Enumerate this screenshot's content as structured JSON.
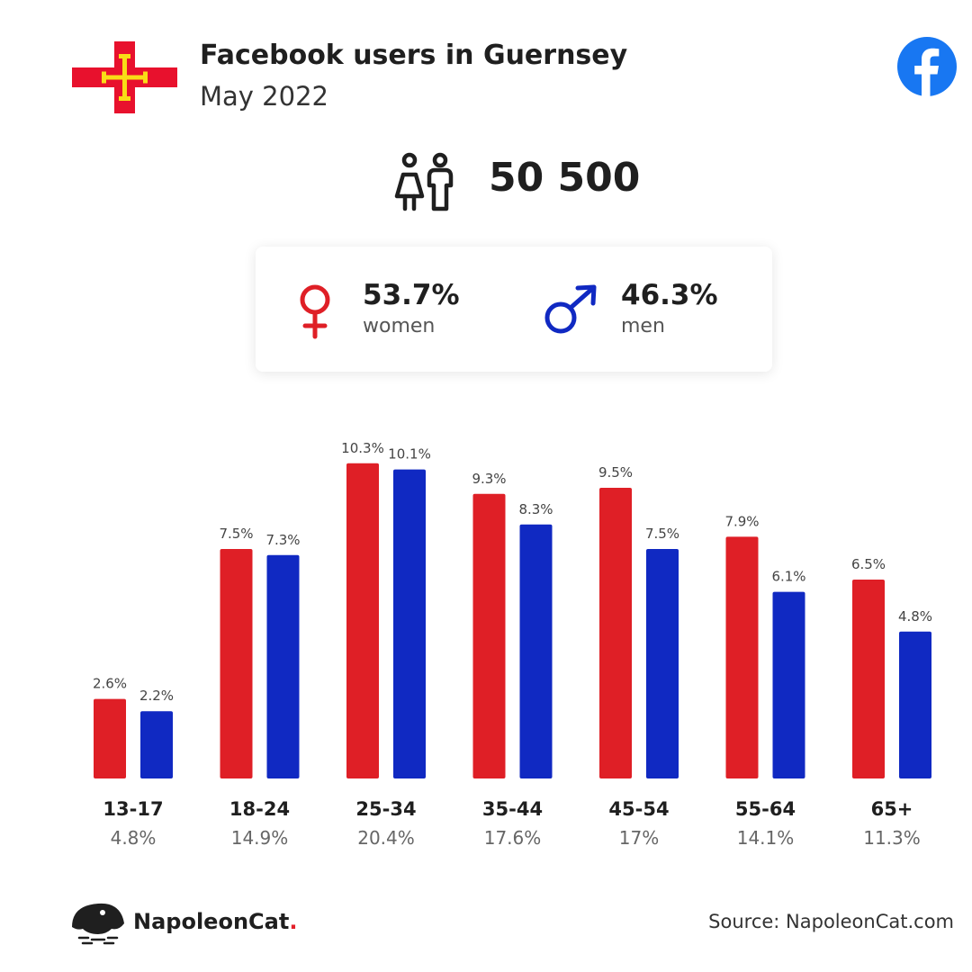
{
  "header": {
    "title": "Facebook users in Guernsey",
    "subtitle": "May 2022",
    "total_users": "50 500"
  },
  "gender": {
    "women_pct": "53.7%",
    "women_label": "women",
    "men_pct": "46.3%",
    "men_label": "men"
  },
  "footer": {
    "brand_name": "NapoleonCat",
    "brand_dot": ".",
    "source": "Source: NapoleonCat.com"
  },
  "icons": [
    "guernsey-flag-icon",
    "facebook-logo-icon",
    "people-icon",
    "female-symbol-icon",
    "male-symbol-icon",
    "napoleoncat-logo-icon"
  ],
  "colors": {
    "women": "#df1f26",
    "men": "#1029c2",
    "facebook": "#1877f2"
  },
  "chart_data": {
    "type": "bar",
    "categories": [
      "13-17",
      "18-24",
      "25-34",
      "35-44",
      "45-54",
      "55-64",
      "65+"
    ],
    "category_totals": [
      "4.8%",
      "14.9%",
      "20.4%",
      "17.6%",
      "17%",
      "14.1%",
      "11.3%"
    ],
    "series": [
      {
        "values": [
          2.6,
          7.5,
          10.3,
          9.3,
          9.5,
          7.9,
          6.5
        ],
        "labels": [
          "2.6%",
          "7.5%",
          "10.3%",
          "9.3%",
          "9.5%",
          "7.9%",
          "6.5%"
        ],
        "color": "#df1f26"
      },
      {
        "values": [
          2.2,
          7.3,
          10.1,
          8.3,
          7.5,
          6.1,
          4.8
        ],
        "labels": [
          "2.2%",
          "7.3%",
          "10.1%",
          "8.3%",
          "7.5%",
          "6.1%",
          "4.8%"
        ],
        "color": "#1029c2"
      }
    ],
    "grid": false,
    "legend": "none"
  }
}
